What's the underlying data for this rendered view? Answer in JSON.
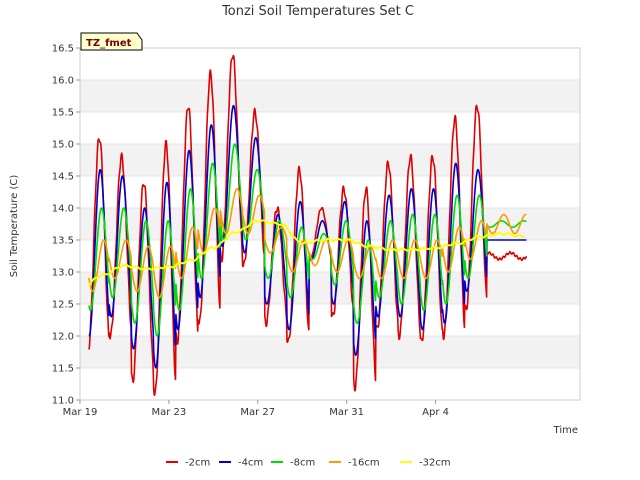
{
  "chart_data": {
    "type": "line",
    "title": "Tonzi Soil Temperatures Set C",
    "xlabel": "Time",
    "ylabel": "Soil Temperature (C)",
    "annotation": "TZ_fmet",
    "xlim": [
      0,
      22.5
    ],
    "ylim": [
      11.0,
      16.5
    ],
    "x_ticks": [
      {
        "value": 0,
        "label": "Mar 19"
      },
      {
        "value": 4,
        "label": "Mar 23"
      },
      {
        "value": 8,
        "label": "Mar 27"
      },
      {
        "value": 12,
        "label": "Mar 31"
      },
      {
        "value": 16,
        "label": "Apr 4"
      }
    ],
    "y_ticks": [
      11.0,
      11.5,
      12.0,
      12.5,
      13.0,
      13.5,
      14.0,
      14.5,
      15.0,
      15.5,
      16.0,
      16.5
    ],
    "grid": "horizontal bands",
    "legend_position": "bottom",
    "series": [
      {
        "name": "-2cm",
        "color": "#e00000",
        "daily_min": [
          11.8,
          12.0,
          11.3,
          11.1,
          11.9,
          12.2,
          13.2,
          13.1,
          12.2,
          11.9,
          13.2,
          12.3,
          11.2,
          12.1,
          12.0,
          11.9,
          12.0,
          12.4,
          13.3
        ],
        "daily_max": [
          15.1,
          14.8,
          14.4,
          15.0,
          15.6,
          16.1,
          16.4,
          15.5,
          14.0,
          14.6,
          14.0,
          14.3,
          14.3,
          14.7,
          14.8,
          14.8,
          15.4,
          15.6,
          13.2
        ]
      },
      {
        "name": "-4cm",
        "color": "#0000cc",
        "daily_min": [
          12.0,
          12.3,
          11.8,
          11.5,
          12.1,
          12.6,
          13.4,
          13.3,
          12.5,
          12.1,
          13.2,
          12.5,
          11.7,
          12.3,
          12.3,
          12.1,
          12.2,
          12.7,
          13.5
        ],
        "daily_max": [
          14.6,
          14.5,
          14.0,
          14.4,
          14.9,
          15.3,
          15.6,
          15.1,
          13.9,
          14.1,
          13.8,
          14.1,
          13.8,
          14.2,
          14.3,
          14.3,
          14.7,
          14.6,
          13.5
        ]
      },
      {
        "name": "-8cm",
        "color": "#00dd00",
        "daily_min": [
          12.4,
          12.6,
          12.2,
          12.0,
          12.4,
          12.9,
          13.5,
          13.5,
          12.9,
          12.6,
          13.2,
          12.8,
          12.2,
          12.6,
          12.5,
          12.4,
          12.5,
          12.9,
          13.7
        ],
        "daily_max": [
          14.0,
          14.0,
          13.8,
          13.8,
          14.3,
          14.7,
          15.0,
          14.6,
          13.8,
          13.7,
          13.6,
          13.8,
          13.5,
          13.8,
          13.9,
          13.9,
          14.2,
          14.2,
          13.8
        ]
      },
      {
        "name": "-16cm",
        "color": "#ff9900",
        "daily_min": [
          12.7,
          12.9,
          12.7,
          12.6,
          12.9,
          13.3,
          13.6,
          13.6,
          13.3,
          13.0,
          13.1,
          13.0,
          12.9,
          12.9,
          12.9,
          12.9,
          13.0,
          13.2,
          13.6
        ],
        "daily_max": [
          13.5,
          13.5,
          13.4,
          13.4,
          13.7,
          14.0,
          14.3,
          14.2,
          13.7,
          13.5,
          13.5,
          13.5,
          13.4,
          13.5,
          13.5,
          13.5,
          13.7,
          13.8,
          13.9
        ]
      },
      {
        "name": "-32cm",
        "color": "#ffff00",
        "x": [
          0,
          1,
          2,
          3,
          4,
          5,
          6,
          7,
          8,
          9,
          10,
          11,
          12,
          13,
          14,
          15,
          16,
          17,
          18,
          19
        ],
        "values": [
          12.72,
          12.95,
          13.1,
          13.05,
          13.08,
          13.18,
          13.38,
          13.62,
          13.8,
          13.75,
          13.45,
          13.5,
          13.5,
          13.4,
          13.35,
          13.35,
          13.38,
          13.45,
          13.55,
          13.6
        ]
      }
    ]
  }
}
